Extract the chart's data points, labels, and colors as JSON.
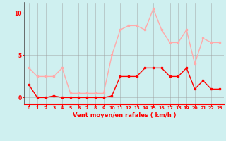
{
  "x": [
    0,
    1,
    2,
    3,
    4,
    5,
    6,
    7,
    8,
    9,
    10,
    11,
    12,
    13,
    14,
    15,
    16,
    17,
    18,
    19,
    20,
    21,
    22,
    23
  ],
  "wind_avg": [
    1.5,
    0,
    0,
    0.2,
    0,
    0,
    0,
    0,
    0,
    0,
    0.2,
    2.5,
    2.5,
    2.5,
    3.5,
    3.5,
    3.5,
    2.5,
    2.5,
    3.5,
    1,
    2,
    1,
    1
  ],
  "wind_gust": [
    3.5,
    2.5,
    2.5,
    2.5,
    3.5,
    0.5,
    0.5,
    0.5,
    0.5,
    0.5,
    5,
    8,
    8.5,
    8.5,
    8,
    10.5,
    8,
    6.5,
    6.5,
    8,
    4,
    7,
    6.5,
    6.5
  ],
  "bg_color": "#cff0f0",
  "line_color_avg": "#ff0000",
  "line_color_gust": "#ffaaaa",
  "grid_color": "#999999",
  "xlabel": "Vent moyen/en rafales ( km/h )",
  "yticks": [
    0,
    5,
    10
  ],
  "ylim": [
    -0.8,
    11.2
  ],
  "xlim": [
    -0.5,
    23.5
  ],
  "xlabel_color": "#ff0000",
  "ytick_color": "#ff0000",
  "xtick_color": "#ff0000",
  "left_spine_color": "#555555",
  "bottom_spine_color": "#ff0000"
}
